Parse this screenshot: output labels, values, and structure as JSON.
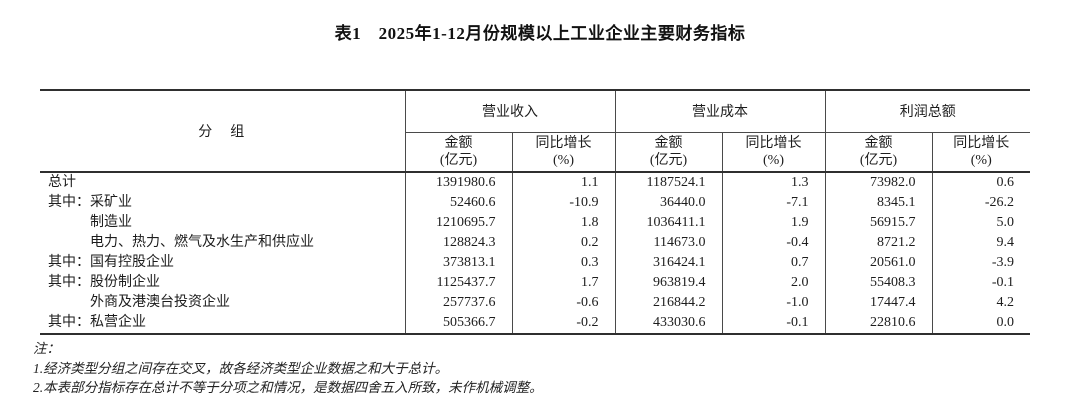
{
  "title": "表1　2025年1-12月份规模以上工业企业主要财务指标",
  "table": {
    "group_col_header": "分　组",
    "col_groups": [
      {
        "label": "营业收入"
      },
      {
        "label": "营业成本"
      },
      {
        "label": "利润总额"
      }
    ],
    "sub_headers": {
      "amount_line1": "金额",
      "amount_line2": "(亿元)",
      "growth_line1": "同比增长",
      "growth_line2": "(%)"
    },
    "rows": [
      {
        "prefix": "",
        "label": "总计",
        "indent": false,
        "values": [
          "1391980.6",
          "1.1",
          "1187524.1",
          "1.3",
          "73982.0",
          "0.6"
        ]
      },
      {
        "prefix": "其中：",
        "label": "采矿业",
        "indent": false,
        "values": [
          "52460.6",
          "-10.9",
          "36440.0",
          "-7.1",
          "8345.1",
          "-26.2"
        ]
      },
      {
        "prefix": "",
        "label": "制造业",
        "indent": true,
        "values": [
          "1210695.7",
          "1.8",
          "1036411.1",
          "1.9",
          "56915.7",
          "5.0"
        ]
      },
      {
        "prefix": "",
        "label": "电力、热力、燃气及水生产和供应业",
        "indent": true,
        "values": [
          "128824.3",
          "0.2",
          "114673.0",
          "-0.4",
          "8721.2",
          "9.4"
        ]
      },
      {
        "prefix": "其中：",
        "label": "国有控股企业",
        "indent": false,
        "values": [
          "373813.1",
          "0.3",
          "316424.1",
          "0.7",
          "20561.0",
          "-3.9"
        ]
      },
      {
        "prefix": "其中：",
        "label": "股份制企业",
        "indent": false,
        "values": [
          "1125437.7",
          "1.7",
          "963819.4",
          "2.0",
          "55408.3",
          "-0.1"
        ]
      },
      {
        "prefix": "",
        "label": "外商及港澳台投资企业",
        "indent": true,
        "values": [
          "257737.6",
          "-0.6",
          "216844.2",
          "-1.0",
          "17447.4",
          "4.2"
        ]
      },
      {
        "prefix": "其中：",
        "label": "私营企业",
        "indent": false,
        "values": [
          "505366.7",
          "-0.2",
          "433030.6",
          "-0.1",
          "22810.6",
          "0.0"
        ]
      }
    ]
  },
  "notes": {
    "heading": "注：",
    "items": [
      "1.经济类型分组之间存在交叉，故各经济类型企业数据之和大于总计。",
      "2.本表部分指标存在总计不等于分项之和情况，是数据四舍五入所致，未作机械调整。"
    ]
  }
}
